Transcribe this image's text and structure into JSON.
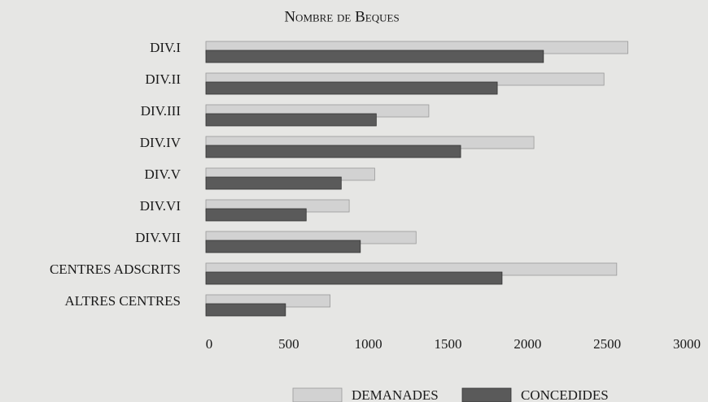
{
  "chart_data": {
    "type": "bar",
    "orientation": "horizontal",
    "title": "Nombre de Beques",
    "categories": [
      "DIV.I",
      "DIV.II",
      "DIV.III",
      "DIV.IV",
      "DIV.V",
      "DIV.VI",
      "DIV.VII",
      "CENTRES ADSCRITS",
      "ALTRES CENTRES"
    ],
    "series": [
      {
        "name": "DEMANADES",
        "color": "#d2d2d2",
        "values": [
          2650,
          2500,
          1400,
          2060,
          1060,
          900,
          1320,
          2580,
          780
        ]
      },
      {
        "name": "CONCEDIDES",
        "color": "#5a5a5a",
        "values": [
          2120,
          1830,
          1070,
          1600,
          850,
          630,
          970,
          1860,
          500
        ]
      }
    ],
    "xlim": [
      0,
      3000
    ],
    "xticks": [
      0,
      500,
      1000,
      1500,
      2000,
      2500,
      3000
    ],
    "legend": "bottom"
  }
}
